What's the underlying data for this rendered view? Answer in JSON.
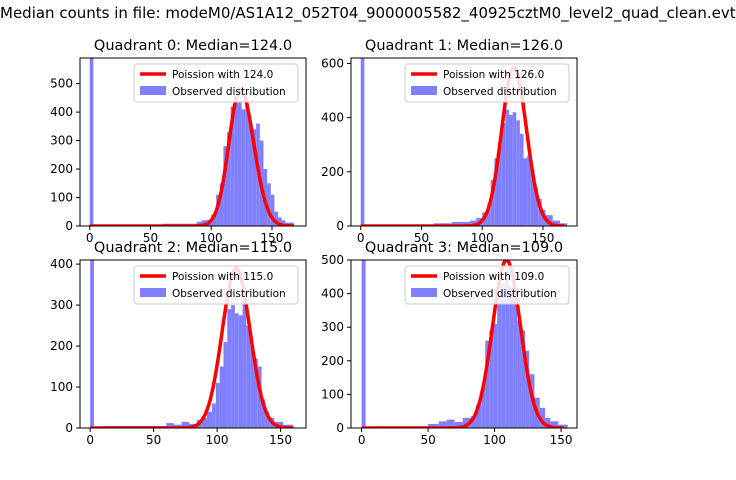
{
  "figure": {
    "suptitle": "Median counts in file: modeM0/AS1A12_052T04_9000005582_40925cztM0_level2_quad_clean.evt"
  },
  "colors": {
    "poisson": "#ff0000",
    "observed": "#8080ff"
  },
  "chart_data": [
    {
      "type": "bar",
      "title": "Quadrant 0: Median=124.0",
      "xlim": [
        -8,
        178
      ],
      "ylim": [
        0,
        590
      ],
      "xticks": [
        0,
        50,
        100,
        150
      ],
      "yticks": [
        0,
        100,
        200,
        300,
        400,
        500
      ],
      "legend": {
        "position": "top-right",
        "entries": [
          "Poission with 124.0",
          "Observed distribution"
        ]
      },
      "median": 124.0,
      "peak": 480,
      "sigma_left": 9.5,
      "sigma_right": 11.0,
      "bins": [
        [
          0,
          3,
          590
        ],
        [
          10,
          60,
          5
        ],
        [
          60,
          88,
          8
        ],
        [
          88,
          92,
          15
        ],
        [
          92,
          96,
          20
        ],
        [
          96,
          100,
          22
        ],
        [
          100,
          104,
          40
        ],
        [
          104,
          107,
          110
        ],
        [
          107,
          110,
          150
        ],
        [
          110,
          113,
          280
        ],
        [
          113,
          116,
          330
        ],
        [
          116,
          119,
          420
        ],
        [
          119,
          122,
          430
        ],
        [
          122,
          125,
          440
        ],
        [
          125,
          128,
          410
        ],
        [
          128,
          131,
          430
        ],
        [
          131,
          134,
          360
        ],
        [
          134,
          137,
          340
        ],
        [
          137,
          140,
          360
        ],
        [
          140,
          143,
          300
        ],
        [
          143,
          146,
          200
        ],
        [
          146,
          149,
          150
        ],
        [
          149,
          152,
          110
        ],
        [
          152,
          155,
          50
        ],
        [
          155,
          158,
          30
        ],
        [
          158,
          161,
          20
        ],
        [
          161,
          168,
          12
        ]
      ]
    },
    {
      "type": "bar",
      "title": "Quadrant 1: Median=126.0",
      "xlim": [
        -8,
        178
      ],
      "ylim": [
        0,
        620
      ],
      "xticks": [
        0,
        50,
        100,
        150
      ],
      "yticks": [
        0,
        200,
        400,
        600
      ],
      "legend": {
        "position": "top-right",
        "entries": [
          "Poission with 126.0",
          "Observed distribution"
        ]
      },
      "median": 126.0,
      "peak": 585,
      "sigma_left": 10.0,
      "sigma_right": 10.5,
      "bins": [
        [
          0,
          3,
          620
        ],
        [
          10,
          60,
          5
        ],
        [
          60,
          75,
          10
        ],
        [
          75,
          90,
          15
        ],
        [
          90,
          95,
          20
        ],
        [
          95,
          100,
          30
        ],
        [
          100,
          104,
          50
        ],
        [
          104,
          107,
          80
        ],
        [
          107,
          110,
          170
        ],
        [
          110,
          113,
          250
        ],
        [
          113,
          116,
          310
        ],
        [
          116,
          119,
          380
        ],
        [
          119,
          122,
          430
        ],
        [
          122,
          125,
          410
        ],
        [
          125,
          128,
          420
        ],
        [
          128,
          131,
          390
        ],
        [
          131,
          134,
          340
        ],
        [
          134,
          137,
          250
        ],
        [
          137,
          140,
          260
        ],
        [
          140,
          143,
          210
        ],
        [
          143,
          146,
          140
        ],
        [
          146,
          149,
          100
        ],
        [
          149,
          152,
          60
        ],
        [
          152,
          158,
          40
        ],
        [
          158,
          164,
          20
        ],
        [
          164,
          170,
          10
        ]
      ]
    },
    {
      "type": "bar",
      "title": "Quadrant 2: Median=115.0",
      "xlim": [
        -8,
        170
      ],
      "ylim": [
        0,
        410
      ],
      "xticks": [
        0,
        50,
        100,
        150
      ],
      "yticks": [
        0,
        100,
        200,
        300,
        400
      ],
      "legend": {
        "position": "top-right",
        "entries": [
          "Poission with 115.0",
          "Observed distribution"
        ]
      },
      "median": 115.0,
      "peak": 390,
      "sigma_left": 11.0,
      "sigma_right": 11.0,
      "bins": [
        [
          0,
          3,
          410
        ],
        [
          10,
          60,
          5
        ],
        [
          60,
          66,
          12
        ],
        [
          66,
          72,
          8
        ],
        [
          72,
          78,
          15
        ],
        [
          78,
          84,
          10
        ],
        [
          84,
          88,
          20
        ],
        [
          88,
          92,
          25
        ],
        [
          92,
          96,
          40
        ],
        [
          96,
          99,
          60
        ],
        [
          99,
          102,
          110
        ],
        [
          102,
          105,
          150
        ],
        [
          105,
          108,
          210
        ],
        [
          108,
          111,
          290
        ],
        [
          111,
          114,
          300
        ],
        [
          114,
          117,
          280
        ],
        [
          117,
          120,
          275
        ],
        [
          120,
          123,
          310
        ],
        [
          123,
          126,
          250
        ],
        [
          126,
          129,
          200
        ],
        [
          129,
          132,
          170
        ],
        [
          132,
          135,
          150
        ],
        [
          135,
          138,
          70
        ],
        [
          138,
          141,
          40
        ],
        [
          141,
          145,
          25
        ],
        [
          145,
          152,
          15
        ],
        [
          152,
          160,
          8
        ]
      ]
    },
    {
      "type": "bar",
      "title": "Quadrant 3: Median=109.0",
      "xlim": [
        -8,
        162
      ],
      "ylim": [
        0,
        500
      ],
      "xticks": [
        0,
        50,
        100,
        150
      ],
      "yticks": [
        0,
        100,
        200,
        300,
        400,
        500
      ],
      "legend": {
        "position": "top-right",
        "entries": [
          "Poission with 109.0",
          "Observed distribution"
        ]
      },
      "median": 109.0,
      "peak": 500,
      "sigma_left": 10.5,
      "sigma_right": 10.5,
      "bins": [
        [
          0,
          3,
          500
        ],
        [
          10,
          50,
          5
        ],
        [
          50,
          58,
          12
        ],
        [
          58,
          64,
          20
        ],
        [
          64,
          70,
          25
        ],
        [
          70,
          76,
          18
        ],
        [
          76,
          82,
          30
        ],
        [
          82,
          86,
          35
        ],
        [
          86,
          90,
          70
        ],
        [
          90,
          93,
          120
        ],
        [
          93,
          96,
          260
        ],
        [
          96,
          99,
          290
        ],
        [
          99,
          102,
          310
        ],
        [
          102,
          105,
          420
        ],
        [
          105,
          108,
          430
        ],
        [
          108,
          111,
          470
        ],
        [
          111,
          114,
          420
        ],
        [
          114,
          117,
          390
        ],
        [
          117,
          120,
          320
        ],
        [
          120,
          123,
          290
        ],
        [
          123,
          126,
          230
        ],
        [
          126,
          130,
          160
        ],
        [
          130,
          134,
          90
        ],
        [
          134,
          138,
          60
        ],
        [
          138,
          142,
          30
        ],
        [
          142,
          148,
          20
        ],
        [
          148,
          155,
          10
        ]
      ]
    }
  ]
}
